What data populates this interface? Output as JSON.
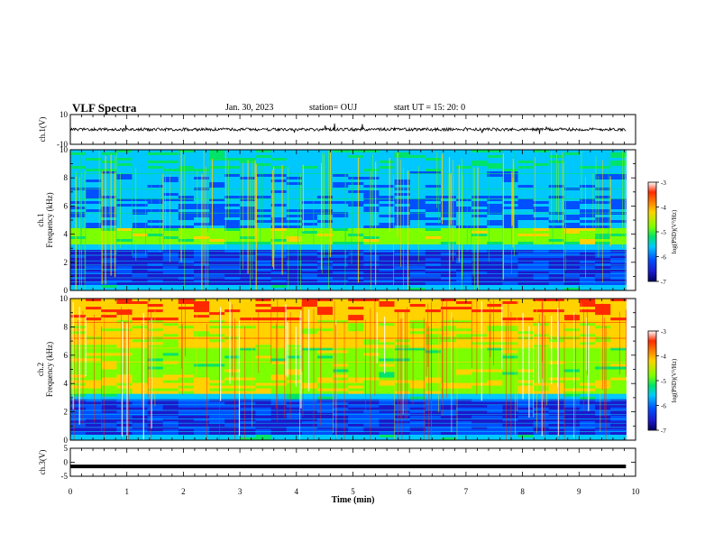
{
  "header": {
    "title": "VLF Spectra",
    "date": "Jan. 30, 2023",
    "station": "station= OUJ",
    "start": "start  UT =   15: 20: 0"
  },
  "colorbar": {
    "label": "log(PSD)(V²/Hz)",
    "ticks": [
      -3,
      -4,
      -5,
      -6,
      -7
    ],
    "colors": [
      "#ffffff",
      "#ff2a00",
      "#ffd200",
      "#7cff00",
      "#00e36a",
      "#00c8ff",
      "#0050ff",
      "#1a1acd",
      "#000060"
    ]
  },
  "chart_data": [
    {
      "type": "line",
      "name": "ch1-waveform",
      "ylabel": "ch.1(V)",
      "ylim": [
        -10,
        10
      ],
      "yticks": [
        "10",
        "-10"
      ],
      "description_values": {
        "baseline": 0,
        "amplitude_typ": 1.5
      }
    },
    {
      "type": "heatmap",
      "name": "ch1-spectrogram",
      "ylabel": "ch.1\nFrequency (kHz)",
      "ylim": [
        0,
        10
      ],
      "yticks": [
        "0",
        "2",
        "4",
        "6",
        "8",
        "10"
      ],
      "colorbar_range": [
        -7,
        -3
      ]
    },
    {
      "type": "heatmap",
      "name": "ch2-spectrogram",
      "ylabel": "ch.2\nFrequency (kHz)",
      "ylim": [
        0,
        10
      ],
      "yticks": [
        "0",
        "2",
        "4",
        "6",
        "8",
        "10"
      ],
      "colorbar_range": [
        -7,
        -3
      ]
    },
    {
      "type": "line",
      "name": "ch3-waveform",
      "ylabel": "ch.3(V)",
      "ylim": [
        -5,
        5
      ],
      "yticks": [
        "5",
        "0",
        "-5"
      ],
      "values": [
        -1.5,
        -1.5
      ]
    }
  ],
  "xaxis": {
    "label": "Time  (min)",
    "xlim": [
      0,
      10
    ],
    "ticks": [
      "0",
      "1",
      "2",
      "3",
      "4",
      "5",
      "6",
      "7",
      "8",
      "9",
      "10"
    ],
    "data_end": 9.83
  }
}
